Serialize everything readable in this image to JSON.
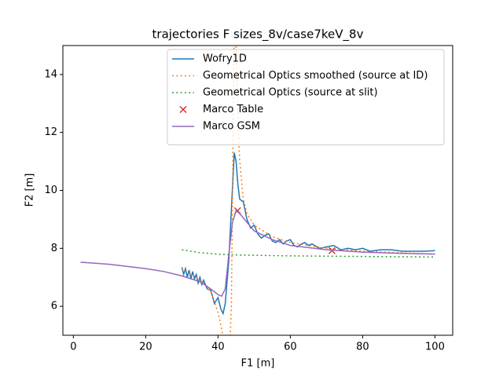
{
  "chart_data": {
    "type": "line",
    "title": "trajectories F sizes_8v/case7keV_8v",
    "x_label": "F1 [m]",
    "y_label": "F2 [m]",
    "xlim": [
      -2.9,
      104.9
    ],
    "ylim": [
      5,
      15
    ],
    "xticks": [
      0,
      20,
      40,
      60,
      80,
      100
    ],
    "yticks": [
      6,
      8,
      10,
      12,
      14
    ],
    "grid": false,
    "legend": "upper right",
    "series": [
      {
        "name": "Wofry1D",
        "color": "#1f77b4",
        "style": "solid",
        "x": [
          30,
          30.5,
          31,
          31.5,
          32,
          32.5,
          33,
          33.5,
          34,
          34.5,
          35,
          35.5,
          36,
          37,
          38,
          39,
          40,
          40.8,
          41.4,
          42,
          43,
          43.8,
          44.5,
          45,
          45.5,
          46,
          47,
          48,
          49,
          50,
          51,
          52,
          53,
          54,
          55,
          56,
          57,
          58,
          59,
          60,
          61,
          62,
          63,
          64,
          65,
          66,
          68,
          70,
          72,
          74,
          76,
          78,
          80,
          82,
          85,
          88,
          91,
          94,
          97,
          100
        ],
        "values": [
          7.35,
          7.1,
          7.3,
          7.0,
          7.25,
          6.95,
          7.2,
          6.95,
          7.1,
          6.8,
          7.0,
          6.75,
          6.9,
          6.6,
          6.55,
          6.1,
          6.3,
          5.9,
          5.75,
          6.1,
          7.6,
          9.6,
          11.3,
          11.0,
          10.2,
          9.7,
          9.6,
          9.0,
          8.7,
          8.8,
          8.5,
          8.35,
          8.45,
          8.5,
          8.25,
          8.2,
          8.3,
          8.15,
          8.25,
          8.3,
          8.1,
          8.05,
          8.15,
          8.2,
          8.1,
          8.15,
          8.0,
          8.05,
          8.1,
          7.95,
          8.0,
          7.95,
          8.0,
          7.9,
          7.95,
          7.95,
          7.9,
          7.9,
          7.9,
          7.92
        ]
      },
      {
        "name": "Geometrical Optics smoothed (source at ID)",
        "color": "#ff7f0e",
        "style": "dotted",
        "x": [
          30,
          33,
          36,
          38,
          40,
          41,
          41.8,
          42.5,
          43.2,
          43.7,
          44.1,
          44.5,
          45,
          45.5,
          46,
          47,
          48,
          50,
          55,
          60,
          70,
          80,
          90,
          100
        ],
        "values": [
          7.3,
          7.1,
          6.8,
          6.5,
          5.8,
          5.2,
          4.6,
          4.2,
          4.4,
          6.0,
          11.0,
          16.0,
          15.0,
          12.5,
          11.0,
          9.7,
          9.2,
          8.8,
          8.4,
          8.2,
          8.0,
          7.9,
          7.85,
          7.8
        ]
      },
      {
        "name": "Geometrical Optics (source at slit)",
        "color": "#2ca02c",
        "style": "dotted",
        "x": [
          30,
          35,
          40,
          45,
          50,
          60,
          70,
          80,
          90,
          100
        ],
        "values": [
          7.95,
          7.85,
          7.8,
          7.77,
          7.76,
          7.74,
          7.73,
          7.72,
          7.71,
          7.7
        ]
      },
      {
        "name": "Marco Table",
        "color": "#d62728",
        "style": "marker",
        "x": [
          45.4,
          71.5
        ],
        "values": [
          9.3,
          7.92
        ]
      },
      {
        "name": "Marco GSM",
        "color": "#9467bd",
        "style": "solid",
        "x": [
          2,
          10,
          20,
          25,
          30,
          35,
          38,
          40,
          41,
          42,
          43,
          44,
          45,
          46,
          48,
          50,
          55,
          60,
          70,
          80,
          90,
          100
        ],
        "values": [
          7.52,
          7.45,
          7.3,
          7.2,
          7.05,
          6.85,
          6.6,
          6.4,
          6.35,
          6.6,
          7.8,
          8.9,
          9.3,
          9.2,
          8.9,
          8.6,
          8.3,
          8.1,
          7.95,
          7.87,
          7.83,
          7.8
        ]
      }
    ]
  }
}
